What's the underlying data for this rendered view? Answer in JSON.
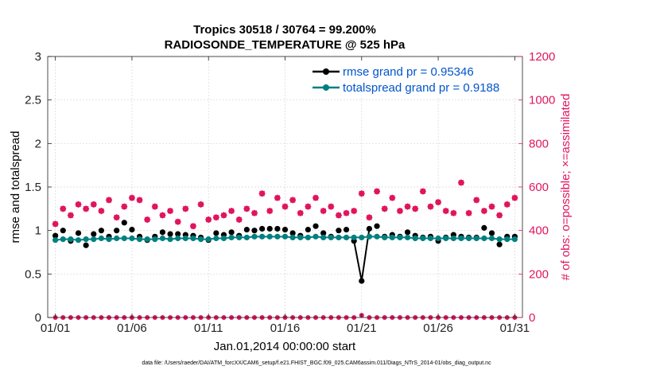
{
  "colors": {
    "rmse": "#000000",
    "spread": "#008080",
    "obs": "#e0155e",
    "text": "#000000",
    "legend_text": "#0055cc"
  },
  "chart_data": {
    "type": "line",
    "title": "Tropics 30518 / 30764 = 99.200%",
    "subtitle": "RADIOSONDE_TEMPERATURE @ 525 hPa",
    "xlabel": "Jan.01,2014 00:00:00 start",
    "ylabel_left": "rmse and totalspread",
    "ylabel_right": "# of obs: o=possible; ×=assimilated",
    "footnote": "data file: /Users/raeder/DAI/ATM_forcXX/CAM6_setup/f.e21.FHIST_BGC.f09_025.CAM6assim.011/Diags_NTrS_2014-01/obs_diag_output.nc",
    "xlim": [
      0.5,
      31.5
    ],
    "ylim_left": [
      0,
      3
    ],
    "ylim_right": [
      0,
      1200
    ],
    "x_ticks": [
      1,
      6,
      11,
      16,
      21,
      26,
      31
    ],
    "x_tick_labels": [
      "01/01",
      "01/06",
      "01/11",
      "01/16",
      "01/21",
      "01/26",
      "01/31"
    ],
    "y_left_ticks": [
      0,
      0.5,
      1,
      1.5,
      2,
      2.5,
      3
    ],
    "y_left_tick_labels": [
      "0",
      "0.5",
      "1",
      "1.5",
      "2",
      "2.5",
      "3"
    ],
    "y_right_ticks": [
      0,
      200,
      400,
      600,
      800,
      1000,
      1200
    ],
    "y_right_tick_labels": [
      "0",
      "200",
      "400",
      "600",
      "800",
      "1000",
      "1200"
    ],
    "grid": true,
    "legend_location": "top-right",
    "x": [
      1,
      1.5,
      2,
      2.5,
      3,
      3.5,
      4,
      4.5,
      5,
      5.5,
      6,
      6.5,
      7,
      7.5,
      8,
      8.5,
      9,
      9.5,
      10,
      10.5,
      11,
      11.5,
      12,
      12.5,
      13,
      13.5,
      14,
      14.5,
      15,
      15.5,
      16,
      16.5,
      17,
      17.5,
      18,
      18.5,
      19,
      19.5,
      20,
      20.5,
      21,
      21.5,
      22,
      22.5,
      23,
      23.5,
      24,
      24.5,
      25,
      25.5,
      26,
      26.5,
      27,
      27.5,
      28,
      28.5,
      29,
      29.5,
      30,
      30.5,
      31
    ],
    "series": [
      {
        "name": "rmse grand pr = 0.95346",
        "axis": "left",
        "color": "#000000",
        "values": [
          0.94,
          1.0,
          0.88,
          0.97,
          0.83,
          0.96,
          1.0,
          0.93,
          1.0,
          1.09,
          1.01,
          0.93,
          0.89,
          0.93,
          0.98,
          0.96,
          0.96,
          0.95,
          0.94,
          0.92,
          0.89,
          0.97,
          0.95,
          0.98,
          0.94,
          1.01,
          1.0,
          1.02,
          1.02,
          1.02,
          1.01,
          0.97,
          0.94,
          1.01,
          1.05,
          0.97,
          0.93,
          1.0,
          1.01,
          0.88,
          0.42,
          1.02,
          1.05,
          0.93,
          0.95,
          0.93,
          0.98,
          0.94,
          0.92,
          0.93,
          0.88,
          0.92,
          0.95,
          0.93,
          0.92,
          0.92,
          1.03,
          0.97,
          0.84,
          0.93,
          0.93
        ]
      },
      {
        "name": "totalspread grand pr = 0.9188",
        "axis": "left",
        "color": "#008080",
        "values": [
          0.89,
          0.9,
          0.9,
          0.89,
          0.9,
          0.9,
          0.91,
          0.9,
          0.91,
          0.91,
          0.91,
          0.9,
          0.9,
          0.9,
          0.91,
          0.9,
          0.91,
          0.91,
          0.91,
          0.9,
          0.9,
          0.91,
          0.91,
          0.92,
          0.92,
          0.92,
          0.93,
          0.93,
          0.93,
          0.93,
          0.93,
          0.92,
          0.92,
          0.92,
          0.93,
          0.92,
          0.92,
          0.92,
          0.92,
          0.92,
          0.92,
          0.93,
          0.93,
          0.92,
          0.92,
          0.92,
          0.92,
          0.91,
          0.91,
          0.91,
          0.91,
          0.91,
          0.91,
          0.91,
          0.91,
          0.91,
          0.91,
          0.91,
          0.9,
          0.9,
          0.9
        ]
      },
      {
        "name": "obs possible",
        "axis": "right",
        "color": "#e0155e",
        "values": [
          430,
          500,
          470,
          520,
          500,
          520,
          490,
          540,
          460,
          510,
          550,
          540,
          450,
          510,
          470,
          490,
          440,
          500,
          420,
          520,
          450,
          460,
          470,
          490,
          450,
          500,
          480,
          570,
          490,
          550,
          510,
          540,
          480,
          510,
          550,
          490,
          510,
          470,
          480,
          490,
          570,
          460,
          580,
          500,
          550,
          490,
          510,
          500,
          580,
          510,
          530,
          490,
          480,
          620,
          480,
          540,
          490,
          510,
          470,
          520,
          550
        ]
      },
      {
        "name": "obs assimilated",
        "axis": "right",
        "color": "#e0155e",
        "values": [
          430,
          500,
          470,
          520,
          500,
          520,
          490,
          540,
          460,
          510,
          550,
          540,
          450,
          510,
          470,
          490,
          440,
          500,
          420,
          520,
          450,
          460,
          470,
          490,
          450,
          500,
          480,
          570,
          490,
          550,
          510,
          540,
          480,
          510,
          550,
          490,
          510,
          470,
          480,
          490,
          570,
          460,
          580,
          500,
          550,
          490,
          510,
          500,
          580,
          510,
          530,
          490,
          480,
          620,
          480,
          540,
          490,
          510,
          470,
          520,
          550
        ]
      }
    ],
    "unassimilated_counts": [
      0,
      0,
      0,
      0,
      0,
      0,
      0,
      0,
      0,
      0,
      0,
      0,
      0,
      0,
      0,
      0,
      0,
      0,
      0,
      0,
      0,
      0,
      0,
      0,
      0,
      0,
      0,
      0,
      0,
      0,
      0,
      0,
      0,
      0,
      0,
      0,
      0,
      0,
      0,
      0,
      10,
      0,
      0,
      0,
      0,
      0,
      0,
      0,
      0,
      0,
      0,
      0,
      0,
      0,
      0,
      0,
      0,
      0,
      0,
      0,
      0
    ]
  }
}
